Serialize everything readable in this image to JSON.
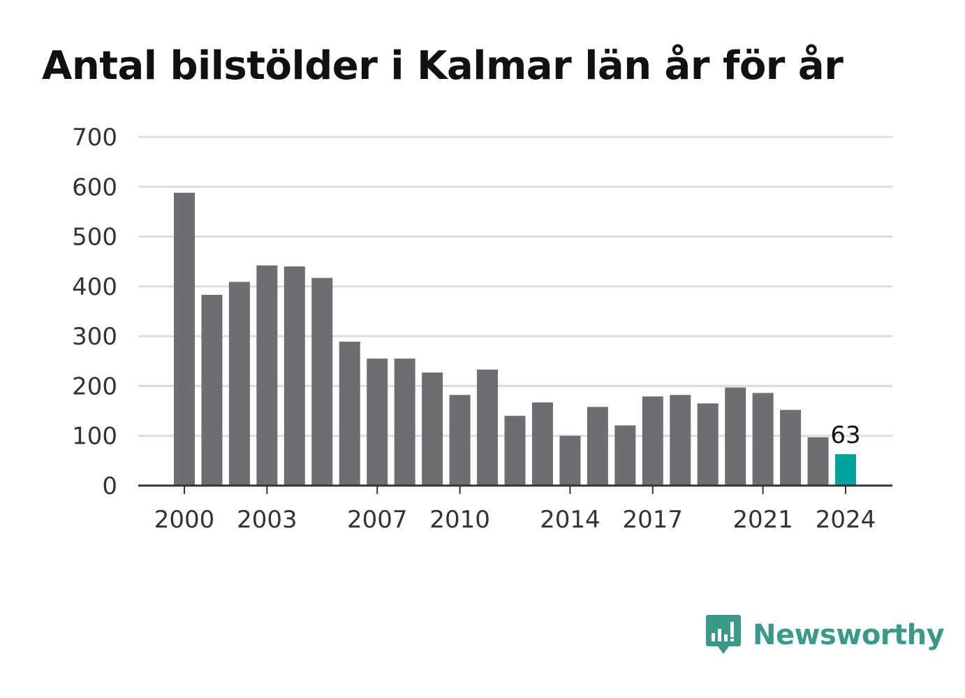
{
  "chart_data": {
    "type": "bar",
    "title": "Antal bilstölder i Kalmar län år för år",
    "xlabel": "",
    "ylabel": "",
    "categories": [
      "2000",
      "2001",
      "2002",
      "2003",
      "2004",
      "2005",
      "2006",
      "2007",
      "2008",
      "2009",
      "2010",
      "2011",
      "2012",
      "2013",
      "2014",
      "2015",
      "2016",
      "2017",
      "2018",
      "2019",
      "2020",
      "2021",
      "2022",
      "2023",
      "2024"
    ],
    "values": [
      588,
      383,
      409,
      442,
      440,
      417,
      289,
      255,
      255,
      227,
      182,
      233,
      140,
      167,
      100,
      158,
      121,
      179,
      182,
      165,
      197,
      186,
      152,
      97,
      63
    ],
    "ylim": [
      0,
      700
    ],
    "yticks": [
      "0",
      "100",
      "200",
      "300",
      "400",
      "500",
      "600",
      "700"
    ],
    "xticks": [
      "2000",
      "2003",
      "2007",
      "2010",
      "2014",
      "2017",
      "2021",
      "2024"
    ],
    "highlight": {
      "category": "2024",
      "label": "63"
    },
    "grid": true,
    "colors": {
      "bar": "#6e6d72",
      "highlight": "#00a39a",
      "grid": "#dcdcdc",
      "axis": "#333333"
    }
  },
  "branding": {
    "name": "Newsworthy",
    "icon": "newsworthy-logo-icon",
    "color": "#3a9a8a"
  }
}
